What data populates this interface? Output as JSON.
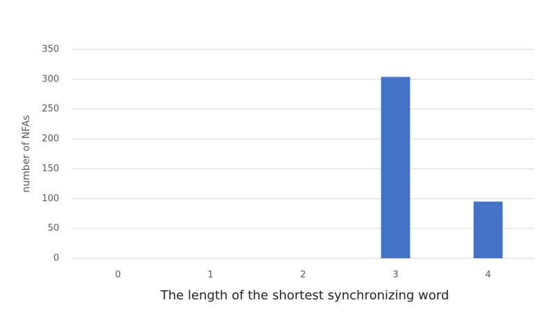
{
  "chart_data": {
    "type": "bar",
    "x_label": "The length of the shortest synchronizing word",
    "y_label": "number of NFAs",
    "categories": [
      "0",
      "1",
      "2",
      "3",
      "4"
    ],
    "values": [
      0,
      0,
      0,
      304,
      95
    ],
    "color": "#4472c4",
    "ylim": [
      0,
      350
    ],
    "yticks": [
      0,
      50,
      100,
      150,
      200,
      250,
      300,
      350
    ],
    "grid": true
  }
}
